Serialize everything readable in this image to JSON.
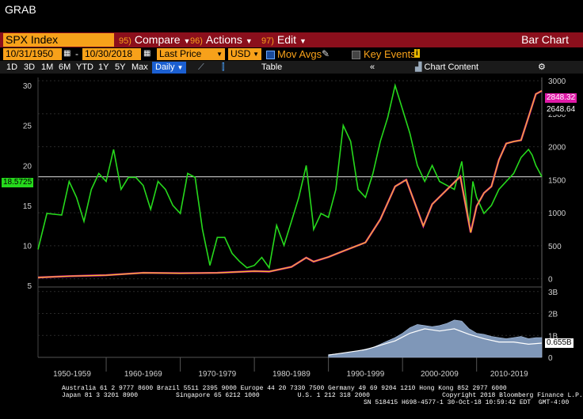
{
  "window": {
    "title": "GRAB"
  },
  "toolbar": {
    "ticker": "SPX Index",
    "compare_num": "95)",
    "compare": "Compare",
    "actions_num": "96)",
    "actions": "Actions",
    "edit_num": "97)",
    "edit": "Edit",
    "chart_type": "Bar Chart"
  },
  "params": {
    "start_date": "10/31/1950",
    "dash": "-",
    "end_date": "10/30/2018",
    "field": "Last Price",
    "currency": "USD",
    "mov_avgs": "Mov Avgs",
    "key_events": "Key Events",
    "info_icon": "i"
  },
  "periods": [
    "1D",
    "3D",
    "1M",
    "6M",
    "YTD",
    "1Y",
    "5Y",
    "Max"
  ],
  "frequency": "Daily",
  "table_btn": "Table",
  "chart_content": "Chart Content",
  "chart_data": {
    "type": "line",
    "x_labels": [
      "1950-1959",
      "1960-1969",
      "1970-1979",
      "1980-1989",
      "1990-1999",
      "2000-2009",
      "2010-2019"
    ],
    "left_axis": {
      "ticks": [
        "30",
        "25",
        "20",
        "15",
        "10",
        "5"
      ],
      "range": [
        5,
        31
      ],
      "current": "18.5725"
    },
    "right_axis": {
      "ticks": [
        "3000",
        "2500",
        "2000",
        "1500",
        "1000",
        "500",
        "0"
      ],
      "range": [
        -100,
        3050
      ],
      "current_high": "2848.32",
      "current_last": "2648.64"
    },
    "volume_axis": {
      "ticks": [
        "3B",
        "2B",
        "1B",
        "0"
      ],
      "current": "0.655B"
    },
    "series": [
      {
        "color": "#26d91c",
        "points": [
          [
            1950.8,
            9.5
          ],
          [
            1952,
            14
          ],
          [
            1954,
            13.8
          ],
          [
            1955,
            18
          ],
          [
            1956,
            16
          ],
          [
            1957,
            13
          ],
          [
            1958,
            17
          ],
          [
            1959,
            19
          ],
          [
            1960,
            18
          ],
          [
            1961,
            22
          ],
          [
            1962,
            17
          ],
          [
            1963,
            18.5
          ],
          [
            1964,
            18.5
          ],
          [
            1965,
            17.5
          ],
          [
            1966,
            14.5
          ],
          [
            1967,
            18
          ],
          [
            1968,
            17
          ],
          [
            1969,
            15
          ],
          [
            1970,
            14
          ],
          [
            1971,
            19
          ],
          [
            1972,
            18.5
          ],
          [
            1973,
            12
          ],
          [
            1974,
            7.5
          ],
          [
            1975,
            11
          ],
          [
            1976,
            11
          ],
          [
            1977,
            9
          ],
          [
            1978,
            8
          ],
          [
            1979,
            7.2
          ],
          [
            1980,
            7.5
          ],
          [
            1981,
            8.5
          ],
          [
            1982,
            7.2
          ],
          [
            1983,
            12.5
          ],
          [
            1984,
            10
          ],
          [
            1985,
            13
          ],
          [
            1986,
            16
          ],
          [
            1987,
            20
          ],
          [
            1987.9,
            13
          ],
          [
            1988,
            12
          ],
          [
            1989,
            14
          ],
          [
            1990,
            13.5
          ],
          [
            1991,
            17
          ],
          [
            1992,
            25
          ],
          [
            1993,
            23
          ],
          [
            1994,
            17
          ],
          [
            1995,
            16
          ],
          [
            1996,
            19
          ],
          [
            1997,
            23
          ],
          [
            1998,
            26
          ],
          [
            1999,
            30
          ],
          [
            2000,
            27
          ],
          [
            2001,
            24
          ],
          [
            2002,
            20
          ],
          [
            2003,
            18
          ],
          [
            2004,
            20
          ],
          [
            2005,
            18
          ],
          [
            2006,
            17.5
          ],
          [
            2007,
            17
          ],
          [
            2008,
            20.5
          ],
          [
            2009,
            12.5
          ],
          [
            2009.5,
            18
          ],
          [
            2010,
            16
          ],
          [
            2011,
            14
          ],
          [
            2012,
            15
          ],
          [
            2013,
            17
          ],
          [
            2014,
            18
          ],
          [
            2015,
            19
          ],
          [
            2016,
            21
          ],
          [
            2017,
            22
          ],
          [
            2017.5,
            21.3
          ],
          [
            2018,
            20
          ],
          [
            2018.8,
            18.6
          ]
        ]
      },
      {
        "color": "#f2c218",
        "points": [
          [
            1950.8,
            20
          ],
          [
            1955,
            40
          ],
          [
            1960,
            55
          ],
          [
            1965,
            90
          ],
          [
            1970,
            85
          ],
          [
            1975,
            90
          ],
          [
            1980,
            115
          ],
          [
            1982,
            110
          ],
          [
            1985,
            180
          ],
          [
            1987,
            320
          ],
          [
            1988,
            260
          ],
          [
            1990,
            330
          ],
          [
            1992,
            420
          ],
          [
            1995,
            550
          ],
          [
            1997,
            900
          ],
          [
            1999,
            1400
          ],
          [
            2000.5,
            1500
          ],
          [
            2002.8,
            800
          ],
          [
            2004,
            1130
          ],
          [
            2007.8,
            1550
          ],
          [
            2009.2,
            700
          ],
          [
            2010,
            1100
          ],
          [
            2011,
            1300
          ],
          [
            2012,
            1400
          ],
          [
            2013,
            1800
          ],
          [
            2014,
            2050
          ],
          [
            2015,
            2080
          ],
          [
            2016,
            2100
          ],
          [
            2017,
            2450
          ],
          [
            2018,
            2800
          ],
          [
            2018.8,
            2848
          ]
        ]
      }
    ],
    "volume_points": [
      [
        1990,
        0.12
      ],
      [
        1992,
        0.2
      ],
      [
        1994,
        0.3
      ],
      [
        1996,
        0.45
      ],
      [
        1997,
        0.6
      ],
      [
        1998,
        0.75
      ],
      [
        1999,
        0.9
      ],
      [
        2000,
        1.1
      ],
      [
        2001,
        1.35
      ],
      [
        2002,
        1.5
      ],
      [
        2003,
        1.45
      ],
      [
        2004,
        1.4
      ],
      [
        2005,
        1.45
      ],
      [
        2006,
        1.55
      ],
      [
        2007,
        1.7
      ],
      [
        2008,
        1.65
      ],
      [
        2009,
        1.3
      ],
      [
        2010,
        1.1
      ],
      [
        2011,
        1.05
      ],
      [
        2012,
        0.95
      ],
      [
        2013,
        0.9
      ],
      [
        2014,
        0.85
      ],
      [
        2015,
        0.9
      ],
      [
        2016,
        0.95
      ],
      [
        2017,
        0.85
      ],
      [
        2018,
        0.9
      ],
      [
        2018.8,
        0.9
      ]
    ],
    "volume_ma_points": [
      [
        1990,
        0.1
      ],
      [
        1995,
        0.35
      ],
      [
        1999,
        0.75
      ],
      [
        2001,
        1.1
      ],
      [
        2003,
        1.3
      ],
      [
        2005,
        1.2
      ],
      [
        2007,
        1.3
      ],
      [
        2009,
        1.05
      ],
      [
        2011,
        0.85
      ],
      [
        2013,
        0.7
      ],
      [
        2015,
        0.7
      ],
      [
        2017,
        0.6
      ],
      [
        2018.8,
        0.65
      ]
    ]
  },
  "footer": {
    "line1": "Australia 61 2 9777 8600 Brazil 5511 2395 9000 Europe 44 20 7330 7500 Germany 49 69 9204 1210 Hong Kong 852 2977 6000",
    "line2": "Japan 81 3 3201 8900          Singapore 65 6212 1000          U.S. 1 212 318 2000                   Copyright 2018 Bloomberg Finance L.P.",
    "line3": "SN 518415 H698-4577-1 30-Oct-18 10:59:42 EDT  GMT-4:00"
  }
}
